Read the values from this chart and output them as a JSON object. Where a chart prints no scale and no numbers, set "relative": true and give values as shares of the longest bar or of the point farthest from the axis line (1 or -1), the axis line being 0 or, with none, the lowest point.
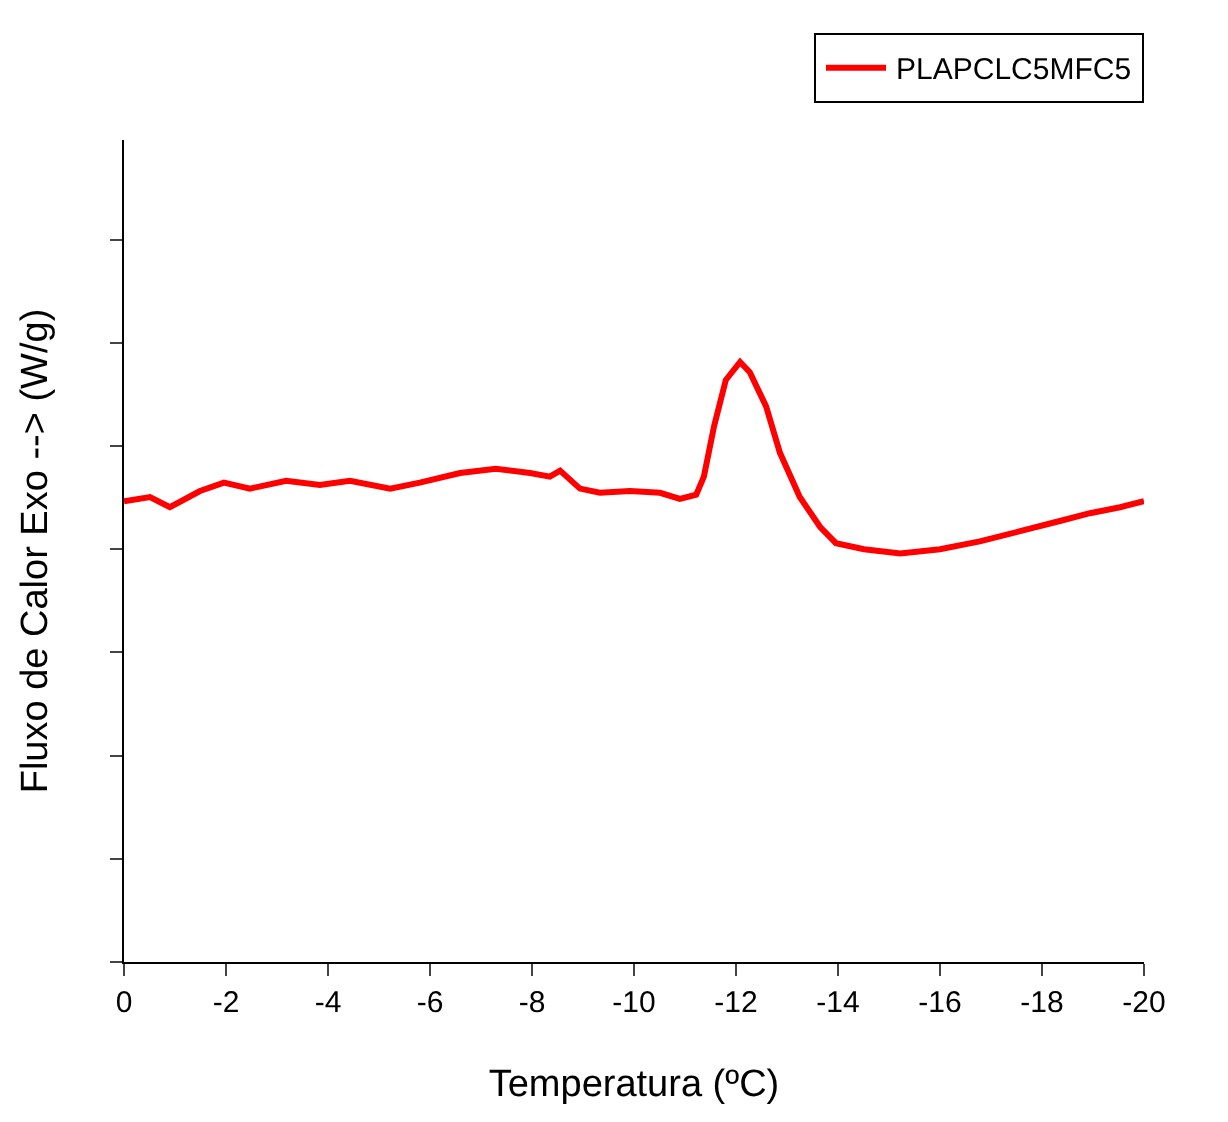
{
  "chart_data": {
    "type": "line",
    "xlabel": "Temperatura (ºC)",
    "ylabel": "Fluxo de Calor Exo --> (W/g)",
    "relative": true,
    "tick_labels": "x",
    "legend": "top right",
    "grid": false,
    "xlim": [
      0,
      -20
    ],
    "xticks": [
      0,
      -2,
      -4,
      -6,
      -8,
      -10,
      -12,
      -14,
      -16,
      -18,
      -20
    ],
    "x": [
      0,
      -0.51,
      -0.9,
      -1.49,
      -1.96,
      -2.47,
      -3.18,
      -3.84,
      -4.43,
      -5.22,
      -5.8,
      -6.59,
      -7.29,
      -7.96,
      -8.35,
      -8.55,
      -8.94,
      -9.33,
      -9.92,
      -10.51,
      -10.9,
      -11.22,
      -11.37,
      -11.57,
      -11.8,
      -12.08,
      -12.27,
      -12.59,
      -12.86,
      -13.25,
      -13.65,
      -13.96,
      -14.51,
      -15.22,
      -16.0,
      -16.78,
      -17.57,
      -18.35,
      -18.94,
      -19.53,
      -20
    ],
    "series": [
      {
        "name": "PLAPCLC5MFC5",
        "color": "#ff0000",
        "values": [
          0.768,
          0.775,
          0.758,
          0.785,
          0.799,
          0.789,
          0.802,
          0.795,
          0.802,
          0.789,
          0.799,
          0.815,
          0.822,
          0.815,
          0.809,
          0.819,
          0.789,
          0.782,
          0.785,
          0.782,
          0.772,
          0.779,
          0.809,
          0.893,
          0.97,
          1,
          0.983,
          0.926,
          0.849,
          0.775,
          0.725,
          0.698,
          0.688,
          0.681,
          0.688,
          0.701,
          0.718,
          0.735,
          0.748,
          0.758,
          0.768
        ]
      }
    ]
  }
}
